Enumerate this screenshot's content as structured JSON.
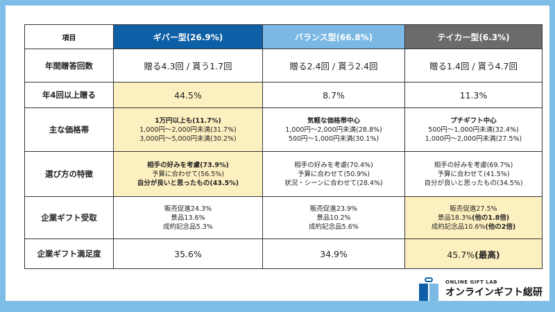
{
  "colors": {
    "frame": "#7dbde6",
    "giver": "#0d5fa6",
    "balance": "#7bb8e3",
    "taker": "#6b6b6b",
    "highlight": "#fdf0c0"
  },
  "header": {
    "item": "項目",
    "giver": "ギバー型(26.9%)",
    "balance": "バランス型(66.8%)",
    "taker": "テイカー型(6.3%)"
  },
  "rows": [
    {
      "label": "年間贈答回数",
      "cells": [
        {
          "lines": [
            {
              "t": "贈る4.3回 / 貰う1.7回"
            }
          ]
        },
        {
          "lines": [
            {
              "t": "贈る2.4回 / 貰う2.4回"
            }
          ]
        },
        {
          "lines": [
            {
              "t": "贈る1.4回 / 貰う4.7回"
            }
          ]
        }
      ]
    },
    {
      "label": "年4回以上贈る",
      "cells": [
        {
          "hl": true,
          "lines": [
            {
              "t": "44.5%"
            }
          ]
        },
        {
          "lines": [
            {
              "t": "8.7%"
            }
          ]
        },
        {
          "lines": [
            {
              "t": "11.3%"
            }
          ]
        }
      ]
    },
    {
      "label": "主な価格帯",
      "small": true,
      "cells": [
        {
          "hl": true,
          "lines": [
            {
              "t": "1万円以上も(11.7%)",
              "b": true
            },
            {
              "t": "1,000円〜2,000円未満(31.7%)"
            },
            {
              "t": "3,000円〜5,000円未満(30.2%)"
            }
          ]
        },
        {
          "lines": [
            {
              "t": "気軽な価格帯中心",
              "b": true
            },
            {
              "t": "1,000円〜2,000円未満(28.8%)"
            },
            {
              "t": "500円〜1,000円未満(30.1%)"
            }
          ]
        },
        {
          "lines": [
            {
              "t": "プチギフト中心",
              "b": true
            },
            {
              "t": "500円〜1,000円未満(32.4%)"
            },
            {
              "t": "1,000円〜2,000円未満(27.5%)"
            }
          ]
        }
      ]
    },
    {
      "label": "選び方の特徴",
      "small": true,
      "cells": [
        {
          "hl": true,
          "lines": [
            {
              "t": "相手の好みを考慮(73.9%)",
              "b": true
            },
            {
              "t": "予算に合わせて(56.5%)"
            },
            {
              "t": "自分が良いと思ったもの(43.5%)",
              "b": true
            }
          ]
        },
        {
          "lines": [
            {
              "t": "相手の好みを考慮(70.4%)"
            },
            {
              "t": "予算に合わせて(50.9%)"
            },
            {
              "t": "状況・シーンに合わせて(28.4%)"
            }
          ]
        },
        {
          "lines": [
            {
              "t": "相手の好みを考慮(69.7%)"
            },
            {
              "t": "予算に合わせて(41.5%)"
            },
            {
              "t": "自分が良いと思ったもの(34.5%)"
            }
          ]
        }
      ]
    },
    {
      "label": "企業ギフト受取",
      "small": true,
      "cells": [
        {
          "lines": [
            {
              "t": "販売促進24.3%"
            },
            {
              "t": "景品13.6%"
            },
            {
              "t": "成約記念品5.3%"
            }
          ]
        },
        {
          "lines": [
            {
              "t": "販売促進23.9%"
            },
            {
              "t": "景品10.2%"
            },
            {
              "t": "成約記念品5.6%"
            }
          ]
        },
        {
          "hl": true,
          "lines": [
            {
              "t": "販売促進27.5%"
            },
            {
              "t": "景品18.3%",
              "bs": "(他の1.8倍)"
            },
            {
              "t": "成約記念品10.6%",
              "bs": "(他の2倍)"
            }
          ]
        }
      ]
    },
    {
      "label": "企業ギフト満足度",
      "cells": [
        {
          "lines": [
            {
              "t": "35.6%"
            }
          ]
        },
        {
          "lines": [
            {
              "t": "34.9%"
            }
          ]
        },
        {
          "hl": true,
          "lines": [
            {
              "t": "45.7%",
              "bs": "(最高)"
            }
          ]
        }
      ]
    }
  ],
  "logo": {
    "en": "ONLINE GIFT LAB",
    "jp": "オンラインギフト総研"
  }
}
